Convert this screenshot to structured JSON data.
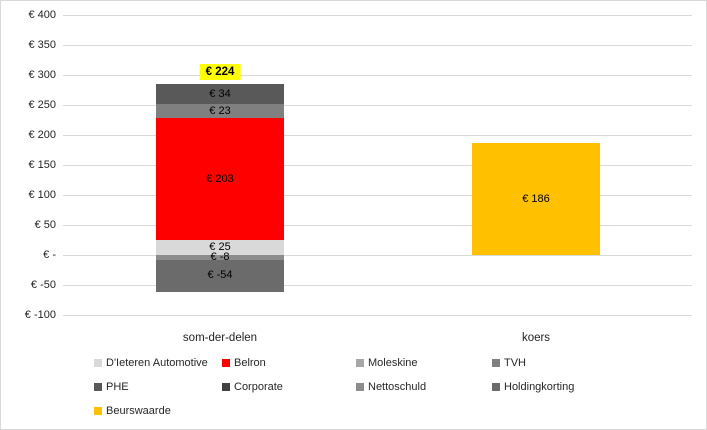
{
  "figure": {
    "background": "#FFFFFF",
    "border_color": "#D9D9D9",
    "gridline_color": "#D9D9D9",
    "highlight_color": "#FFFF00"
  },
  "chart_data": {
    "type": "bar",
    "subtype": "stacked-column",
    "title": "",
    "xlabel": "",
    "ylabel": "",
    "categories": [
      "som-der-delen",
      "koers"
    ],
    "y_axis": {
      "min": -100,
      "max": 400,
      "step": 50,
      "tick_labels": [
        "€ 400",
        "€ 350",
        "€ 300",
        "€ 250",
        "€ 200",
        "€ 150",
        "€ 100",
        "€ 50",
        "€ -",
        "€ -50",
        "€ -100"
      ]
    },
    "grid": "horizontal",
    "legend_position": "bottom",
    "series_colors": {
      "D'Ieteren Automotive": "#D9D9D9",
      "Belron": "#FF0000",
      "Moleskine": "#A6A6A6",
      "TVH": "#808080",
      "PHE": "#595959",
      "Corporate": "#404040",
      "Nettoschuld": "#8C8C8C",
      "Holdingkorting": "#6B6B6B",
      "Beurswaarde": "#FFC000"
    },
    "bars": [
      {
        "category": "som-der-delen",
        "total_label": "€ 224",
        "total_value": 224,
        "segments": [
          {
            "name": "D'Ieteren Automotive",
            "value": 25,
            "label": "€ 25"
          },
          {
            "name": "Belron",
            "value": 203,
            "label": "€ 203"
          },
          {
            "name": "TVH",
            "value": 23,
            "label": "€ 23"
          },
          {
            "name": "PHE",
            "value": 34,
            "label": "€ 34"
          },
          {
            "name": "Nettoschuld",
            "value": -8,
            "label": "€ -8"
          },
          {
            "name": "Holdingkorting",
            "value": -54,
            "label": "€ -54"
          }
        ]
      },
      {
        "category": "koers",
        "segments": [
          {
            "name": "Beurswaarde",
            "value": 186,
            "label": "€ 186"
          }
        ]
      }
    ],
    "legend_rows": [
      [
        "D'Ieteren Automotive",
        "Belron",
        "Moleskine",
        "TVH"
      ],
      [
        "PHE",
        "Corporate",
        "Nettoschuld",
        "Holdingkorting"
      ],
      [
        "Beurswaarde"
      ]
    ]
  }
}
